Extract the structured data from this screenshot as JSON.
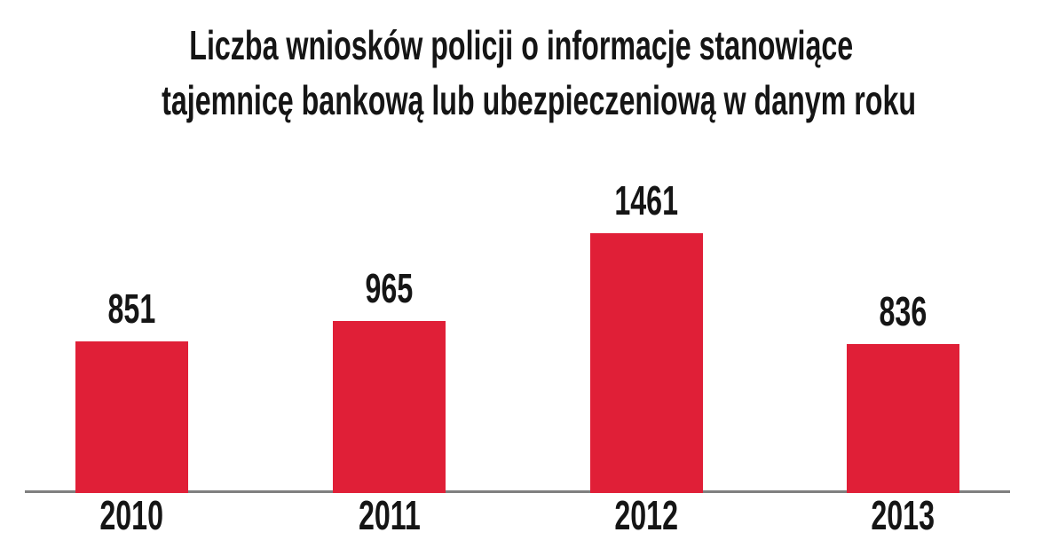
{
  "header": {
    "title_lines": [
      "Liczba wniosków policji o informacje stanowiące",
      "tajemnicę bankową lub ubezpieczeniową w danym roku"
    ]
  },
  "chart_data": {
    "type": "bar",
    "title": "Liczba wniosków policji o informacje stanowiące tajemnicę bankową lub ubezpieczeniową w danym roku",
    "categories": [
      "2010",
      "2011",
      "2012",
      "2013"
    ],
    "values": [
      851,
      965,
      1461,
      836
    ],
    "data_labels": [
      851,
      965,
      1461,
      836
    ],
    "xlabel": "",
    "ylabel": "",
    "ylim": [
      0,
      1461
    ],
    "grid": false,
    "legend_position": "none",
    "bar_color": "#e01f37",
    "axis_line_color": "#7f7f7f",
    "text_color": "#151515",
    "background_color": "#ffffff"
  }
}
